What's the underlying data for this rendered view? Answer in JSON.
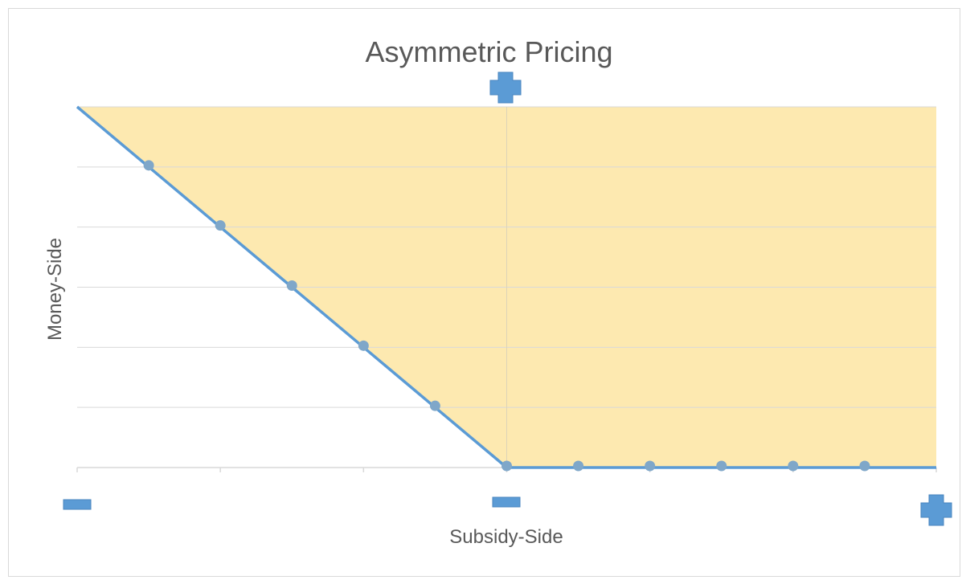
{
  "chart_data": {
    "type": "line",
    "title": "Asymmetric Pricing",
    "xlabel": "Subsidy-Side",
    "ylabel": "Money-Side",
    "x": [
      -6,
      -5,
      -4,
      -3,
      -2,
      -1,
      0,
      1,
      2,
      3,
      4,
      5,
      6
    ],
    "series": [
      {
        "values": [
          6,
          5,
          4,
          3,
          2,
          1,
          0,
          0,
          0,
          0,
          0,
          0,
          0
        ],
        "markers": [
          false,
          true,
          true,
          true,
          true,
          true,
          true,
          true,
          true,
          true,
          true,
          true,
          false
        ]
      }
    ],
    "xlim": [
      -6,
      6
    ],
    "ylim": [
      0,
      6
    ],
    "grid": true,
    "shaded_region": "above-line",
    "axis_symbols": {
      "x_negative": "minus",
      "x_positive": "plus",
      "y_negative": "minus",
      "y_positive": "plus"
    },
    "colors": {
      "line": "#5b9bd5",
      "marker": "#7fa7c9",
      "fill": "#fde9b0",
      "symbol": "#5b9bd5",
      "grid": "#d9d9d9",
      "text": "#595959"
    }
  }
}
